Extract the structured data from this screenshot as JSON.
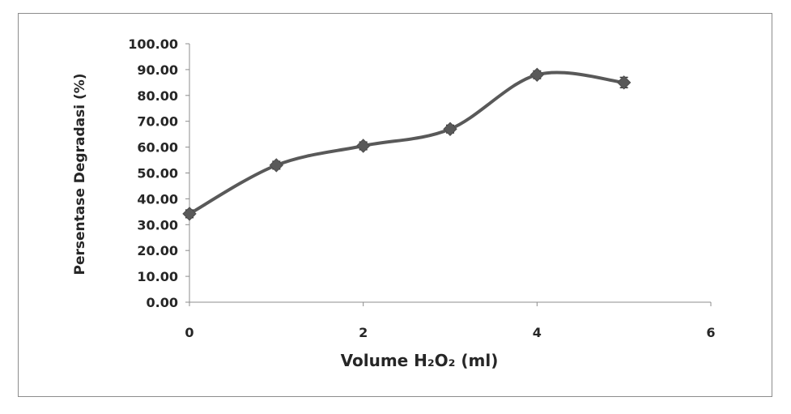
{
  "chart_data": {
    "type": "line",
    "xlabel": "Volume H₂O₂ (ml)",
    "ylabel": "Persentase Degradasi (%)",
    "x": [
      0,
      1,
      2,
      3,
      4,
      5
    ],
    "series": [
      {
        "values": [
          34.2,
          53.0,
          60.5,
          67.0,
          88.0,
          85.0
        ]
      }
    ],
    "error_bars": [
      1.5,
      1.5,
      1.5,
      1.5,
      1.5,
      2.0
    ],
    "xlim": [
      0,
      6
    ],
    "ylim": [
      0,
      100
    ],
    "xticks": [
      0,
      2,
      4,
      6
    ],
    "xtick_labels": [
      "0",
      "2",
      "4",
      "6"
    ],
    "yticks": [
      0,
      10,
      20,
      30,
      40,
      50,
      60,
      70,
      80,
      90,
      100
    ],
    "ytick_labels": [
      "0.00",
      "10.00",
      "20.00",
      "30.00",
      "40.00",
      "50.00",
      "60.00",
      "70.00",
      "80.00",
      "90.00",
      "100.00"
    ],
    "grid": false,
    "legend": "none",
    "smooth": true,
    "marker": "diamond",
    "color": "#595959"
  }
}
